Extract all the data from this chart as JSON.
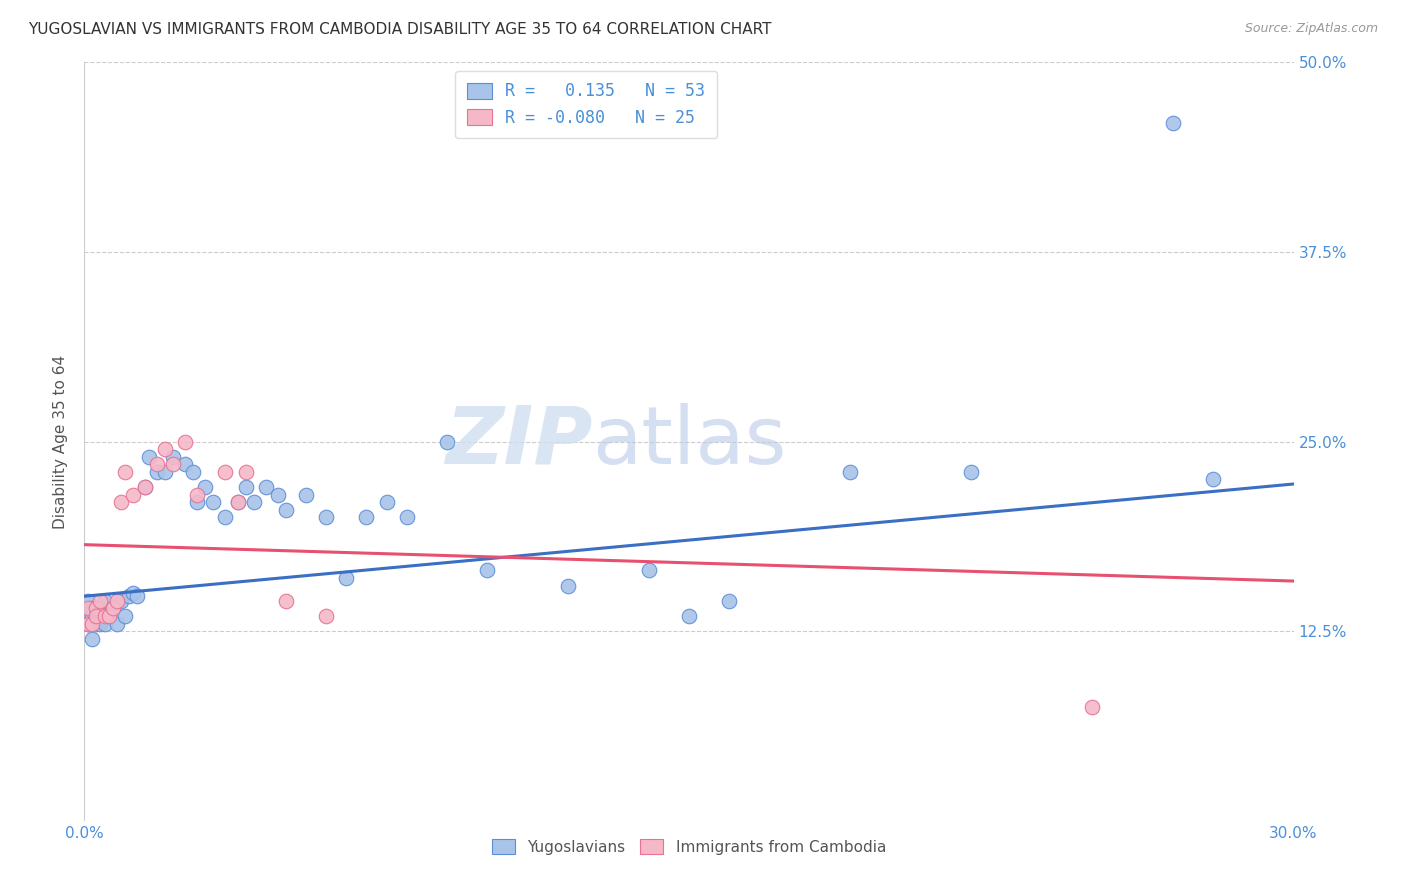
{
  "title": "YUGOSLAVIAN VS IMMIGRANTS FROM CAMBODIA DISABILITY AGE 35 TO 64 CORRELATION CHART",
  "source": "Source: ZipAtlas.com",
  "ylabel": "Disability Age 35 to 64",
  "xlim": [
    0.0,
    0.3
  ],
  "ylim": [
    0.0,
    0.5
  ],
  "xticks": [
    0.0,
    0.05,
    0.1,
    0.15,
    0.2,
    0.25,
    0.3
  ],
  "yticks": [
    0.0,
    0.125,
    0.25,
    0.375,
    0.5
  ],
  "ytick_labels_right": [
    "",
    "12.5%",
    "25.0%",
    "37.5%",
    "50.0%"
  ],
  "xtick_labels": [
    "0.0%",
    "",
    "",
    "",
    "",
    "",
    "30.0%"
  ],
  "blue_R": 0.135,
  "blue_N": 53,
  "pink_R": -0.08,
  "pink_N": 25,
  "blue_color": "#a8c4e8",
  "pink_color": "#f5b8c8",
  "blue_edge_color": "#5b8dd9",
  "pink_edge_color": "#e87090",
  "blue_line_color": "#3a6fc4",
  "pink_line_color": "#e85070",
  "watermark_color": "#d0dff0",
  "blue_line_y0": 0.148,
  "blue_line_y1": 0.222,
  "pink_line_y0": 0.182,
  "pink_line_y1": 0.158,
  "blue_scatter_x": [
    0.001,
    0.001,
    0.001,
    0.002,
    0.002,
    0.002,
    0.003,
    0.003,
    0.004,
    0.004,
    0.005,
    0.005,
    0.006,
    0.007,
    0.008,
    0.009,
    0.01,
    0.011,
    0.012,
    0.013,
    0.015,
    0.016,
    0.018,
    0.02,
    0.022,
    0.025,
    0.027,
    0.028,
    0.03,
    0.032,
    0.035,
    0.038,
    0.04,
    0.042,
    0.045,
    0.048,
    0.05,
    0.055,
    0.06,
    0.065,
    0.07,
    0.075,
    0.08,
    0.09,
    0.1,
    0.12,
    0.14,
    0.15,
    0.16,
    0.19,
    0.22,
    0.27,
    0.28
  ],
  "blue_scatter_y": [
    0.135,
    0.145,
    0.13,
    0.135,
    0.12,
    0.14,
    0.14,
    0.13,
    0.14,
    0.13,
    0.145,
    0.13,
    0.135,
    0.14,
    0.13,
    0.145,
    0.135,
    0.148,
    0.15,
    0.148,
    0.22,
    0.24,
    0.23,
    0.23,
    0.24,
    0.235,
    0.23,
    0.21,
    0.22,
    0.21,
    0.2,
    0.21,
    0.22,
    0.21,
    0.22,
    0.215,
    0.205,
    0.215,
    0.2,
    0.16,
    0.2,
    0.21,
    0.2,
    0.25,
    0.165,
    0.155,
    0.165,
    0.135,
    0.145,
    0.23,
    0.23,
    0.46,
    0.225
  ],
  "pink_scatter_x": [
    0.001,
    0.001,
    0.002,
    0.003,
    0.003,
    0.004,
    0.005,
    0.006,
    0.007,
    0.008,
    0.009,
    0.01,
    0.012,
    0.015,
    0.018,
    0.02,
    0.022,
    0.025,
    0.028,
    0.035,
    0.038,
    0.04,
    0.05,
    0.06,
    0.25
  ],
  "pink_scatter_y": [
    0.13,
    0.14,
    0.13,
    0.14,
    0.135,
    0.145,
    0.135,
    0.135,
    0.14,
    0.145,
    0.21,
    0.23,
    0.215,
    0.22,
    0.235,
    0.245,
    0.235,
    0.25,
    0.215,
    0.23,
    0.21,
    0.23,
    0.145,
    0.135,
    0.075
  ]
}
